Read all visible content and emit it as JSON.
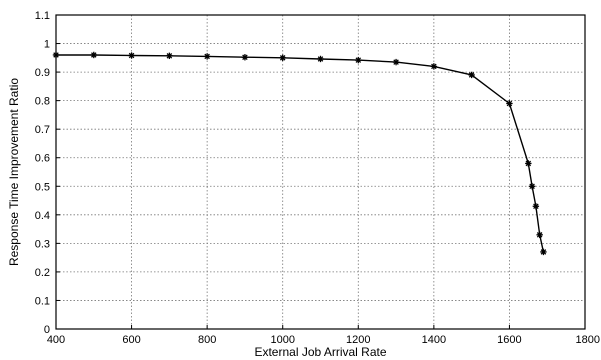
{
  "chart_data": {
    "type": "line",
    "title": "",
    "xlabel": "External Job Arrival Rate",
    "ylabel": "Response Time Improvement Ratio",
    "xlim": [
      400,
      1800
    ],
    "ylim": [
      0,
      1.1
    ],
    "xticks": [
      400,
      600,
      800,
      1000,
      1200,
      1400,
      1600,
      1800
    ],
    "yticks": [
      0,
      0.1,
      0.2,
      0.3,
      0.4,
      0.5,
      0.6,
      0.7,
      0.8,
      0.9,
      1,
      1.1
    ],
    "grid": true,
    "marker": "asterisk",
    "line_color": "#000000",
    "series": [
      {
        "x": [
          400,
          500,
          600,
          700,
          800,
          900,
          1000,
          1100,
          1200,
          1300,
          1400,
          1500,
          1600,
          1650,
          1660,
          1670,
          1680,
          1690
        ],
        "y": [
          0.96,
          0.96,
          0.958,
          0.957,
          0.955,
          0.952,
          0.95,
          0.946,
          0.942,
          0.935,
          0.92,
          0.89,
          0.79,
          0.58,
          0.5,
          0.43,
          0.33,
          0.27
        ]
      }
    ]
  }
}
